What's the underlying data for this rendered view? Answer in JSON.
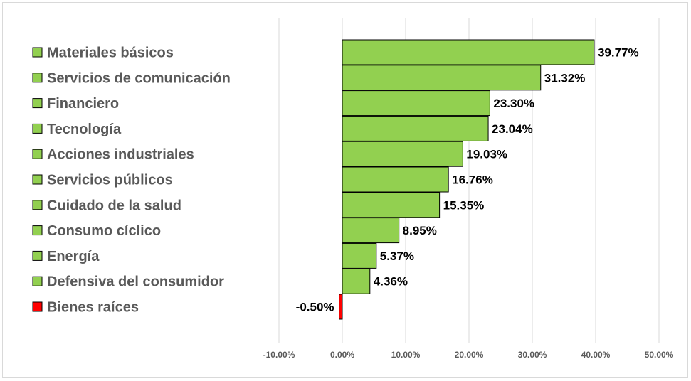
{
  "chart_data": {
    "type": "bar",
    "orientation": "horizontal",
    "categories": [
      "Materiales básicos",
      "Servicios de comunicación",
      "Financiero",
      "Tecnología",
      "Acciones industriales",
      "Servicios públicos",
      "Cuidado de la salud",
      "Consumo cíclico",
      "Energía",
      "Defensiva del consumidor",
      "Bienes raíces"
    ],
    "values": [
      39.77,
      31.32,
      23.3,
      23.04,
      19.03,
      16.76,
      15.35,
      8.95,
      5.37,
      4.36,
      -0.5
    ],
    "value_labels": [
      "39.77%",
      "31.32%",
      "23.30%",
      "23.04%",
      "19.03%",
      "16.76%",
      "15.35%",
      "8.95%",
      "5.37%",
      "4.36%",
      "-0.50%"
    ],
    "xlim": [
      -10,
      50
    ],
    "x_ticks": [
      -10,
      0,
      10,
      20,
      30,
      40,
      50
    ],
    "x_tick_labels": [
      "-10.00%",
      "0.00%",
      "10.00%",
      "20.00%",
      "30.00%",
      "40.00%",
      "50.00%"
    ],
    "grid": true,
    "legend_placement": "left",
    "colors": {
      "positive": "#92d050",
      "negative": "#ff0000",
      "bar_border": "#000000",
      "grid": "#d9d9d9",
      "label": "#595959"
    },
    "title": "",
    "xlabel": "",
    "ylabel": ""
  }
}
